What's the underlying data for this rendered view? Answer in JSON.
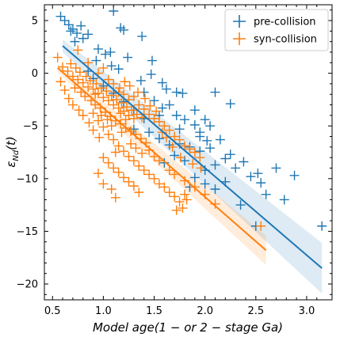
{
  "chart_data": {
    "type": "scatter",
    "xlabel": "Model age(1 −  or 2 − stage Ga)",
    "ylabel": "ε_Nd(t)",
    "ylabel_main": "ε",
    "ylabel_sub": "Nd",
    "ylabel_suffix": "(t)",
    "xlim": [
      0.42,
      3.25
    ],
    "ylim": [
      -21.5,
      6.5
    ],
    "xticks": [
      0.5,
      1.0,
      1.5,
      2.0,
      2.5,
      3.0
    ],
    "xtick_labels": [
      "0.5",
      "1.0",
      "1.5",
      "2.0",
      "2.5",
      "3.0"
    ],
    "yticks": [
      5,
      0,
      -5,
      -10,
      -15,
      -20
    ],
    "ytick_labels": [
      "5",
      "0",
      "−5",
      "−10",
      "−15",
      "−20"
    ],
    "grid": false,
    "legend_placement": "top-right",
    "series": [
      {
        "name": "pre-collision",
        "color": "#1f77b4",
        "marker": "plus",
        "points": [
          [
            0.58,
            5.4
          ],
          [
            0.62,
            5.0
          ],
          [
            0.66,
            4.6
          ],
          [
            0.7,
            4.2
          ],
          [
            0.74,
            3.8
          ],
          [
            0.72,
            3.0
          ],
          [
            0.8,
            3.3
          ],
          [
            0.78,
            4.5
          ],
          [
            0.68,
            4.0
          ],
          [
            0.85,
            3.7
          ],
          [
            1.1,
            5.9
          ],
          [
            1.17,
            4.3
          ],
          [
            1.2,
            4.1
          ],
          [
            1.38,
            3.5
          ],
          [
            1.07,
            2.0
          ],
          [
            1.02,
            1.8
          ],
          [
            0.95,
            2.3
          ],
          [
            0.93,
            1.2
          ],
          [
            1.08,
            0.7
          ],
          [
            1.15,
            0.4
          ],
          [
            1.24,
            1.5
          ],
          [
            1.48,
            1.2
          ],
          [
            1.47,
            -0.1
          ],
          [
            1.37,
            -0.7
          ],
          [
            1.58,
            -0.9
          ],
          [
            1.62,
            -1.5
          ],
          [
            1.72,
            -1.8
          ],
          [
            1.4,
            -1.8
          ],
          [
            1.5,
            -2.6
          ],
          [
            1.65,
            -3.0
          ],
          [
            1.78,
            -1.9
          ],
          [
            1.8,
            -4.4
          ],
          [
            1.9,
            -3.5
          ],
          [
            1.9,
            -4.9
          ],
          [
            2.0,
            -4.4
          ],
          [
            1.95,
            -5.6
          ],
          [
            2.05,
            -5.0
          ],
          [
            2.15,
            -6.3
          ],
          [
            2.25,
            -2.9
          ],
          [
            2.1,
            -1.8
          ],
          [
            2.02,
            -6.4
          ],
          [
            1.95,
            -7.4
          ],
          [
            1.85,
            -7.0
          ],
          [
            1.75,
            -6.7
          ],
          [
            1.65,
            -6.8
          ],
          [
            1.55,
            -6.2
          ],
          [
            1.45,
            -5.6
          ],
          [
            1.4,
            -4.3
          ],
          [
            1.3,
            -3.5
          ],
          [
            1.2,
            -2.7
          ],
          [
            1.1,
            -1.9
          ],
          [
            1.0,
            -1.2
          ],
          [
            0.9,
            -0.5
          ],
          [
            0.85,
            0.2
          ],
          [
            1.6,
            -8.5
          ],
          [
            1.7,
            -7.8
          ],
          [
            1.8,
            -8.3
          ],
          [
            2.1,
            -8.7
          ],
          [
            2.2,
            -8.1
          ],
          [
            2.25,
            -7.7
          ],
          [
            2.38,
            -8.4
          ],
          [
            2.3,
            -9.0
          ],
          [
            2.0,
            -9.2
          ],
          [
            1.9,
            -9.9
          ],
          [
            1.85,
            -10.8
          ],
          [
            2.0,
            -10.5
          ],
          [
            2.1,
            -11.0
          ],
          [
            2.2,
            -10.3
          ],
          [
            2.45,
            -9.8
          ],
          [
            2.52,
            -9.5
          ],
          [
            2.55,
            -10.4
          ],
          [
            2.6,
            -11.5
          ],
          [
            2.78,
            -12.0
          ],
          [
            2.88,
            -9.7
          ],
          [
            2.35,
            -12.5
          ],
          [
            2.5,
            -14.5
          ],
          [
            3.15,
            -14.5
          ],
          [
            2.7,
            -9.0
          ],
          [
            1.95,
            -6.0
          ],
          [
            1.72,
            -4.0
          ],
          [
            1.58,
            -3.3
          ],
          [
            1.3,
            -5.3
          ],
          [
            1.55,
            -4.0
          ],
          [
            1.75,
            -5.3
          ],
          [
            2.05,
            -7.1
          ]
        ]
      },
      {
        "name": "syn-collision",
        "color": "#ff7f0e",
        "marker": "plus",
        "points": [
          [
            0.6,
            0.6
          ],
          [
            0.65,
            0.2
          ],
          [
            0.7,
            -0.3
          ],
          [
            0.75,
            -0.6
          ],
          [
            0.8,
            -0.9
          ],
          [
            0.85,
            -1.3
          ],
          [
            0.9,
            -1.5
          ],
          [
            0.95,
            -1.9
          ],
          [
            1.0,
            -2.3
          ],
          [
            1.05,
            -2.6
          ],
          [
            1.1,
            -3.0
          ],
          [
            1.15,
            -3.3
          ],
          [
            1.2,
            -3.6
          ],
          [
            1.25,
            -4.0
          ],
          [
            1.3,
            -4.3
          ],
          [
            0.72,
            -1.4
          ],
          [
            0.78,
            -1.8
          ],
          [
            0.82,
            -2.2
          ],
          [
            0.88,
            -2.6
          ],
          [
            0.92,
            -3.0
          ],
          [
            0.97,
            -3.3
          ],
          [
            1.02,
            -3.7
          ],
          [
            1.07,
            -4.1
          ],
          [
            1.12,
            -4.5
          ],
          [
            1.17,
            -4.8
          ],
          [
            1.22,
            -5.2
          ],
          [
            1.27,
            -5.5
          ],
          [
            1.32,
            -5.8
          ],
          [
            1.37,
            -6.2
          ],
          [
            1.42,
            -6.6
          ],
          [
            0.68,
            0.9
          ],
          [
            0.73,
            0.5
          ],
          [
            0.77,
            0.1
          ],
          [
            0.83,
            -0.3
          ],
          [
            0.87,
            -0.7
          ],
          [
            0.93,
            -1.0
          ],
          [
            0.98,
            -1.4
          ],
          [
            1.03,
            -1.7
          ],
          [
            1.08,
            -2.1
          ],
          [
            1.13,
            -2.5
          ],
          [
            1.18,
            -2.8
          ],
          [
            1.23,
            -3.2
          ],
          [
            1.28,
            -3.5
          ],
          [
            1.33,
            -3.9
          ],
          [
            1.38,
            -4.2
          ],
          [
            0.75,
            2.2
          ],
          [
            0.85,
            1.0
          ],
          [
            0.95,
            0.0
          ],
          [
            1.0,
            0.5
          ],
          [
            1.05,
            -0.6
          ],
          [
            1.1,
            -1.0
          ],
          [
            1.15,
            -1.8
          ],
          [
            1.2,
            -2.0
          ],
          [
            1.25,
            -2.5
          ],
          [
            1.3,
            -2.2
          ],
          [
            1.35,
            -3.0
          ],
          [
            1.4,
            -3.4
          ],
          [
            1.45,
            -3.9
          ],
          [
            1.5,
            -4.3
          ],
          [
            1.55,
            -4.6
          ],
          [
            1.6,
            -5.0
          ],
          [
            1.65,
            -5.4
          ],
          [
            1.7,
            -6.0
          ],
          [
            1.75,
            -6.3
          ],
          [
            1.8,
            -6.9
          ],
          [
            1.85,
            -7.2
          ],
          [
            1.9,
            -7.5
          ],
          [
            1.95,
            -8.0
          ],
          [
            0.9,
            -3.8
          ],
          [
            0.95,
            -4.5
          ],
          [
            1.0,
            -5.1
          ],
          [
            1.05,
            -5.8
          ],
          [
            1.1,
            -6.3
          ],
          [
            1.15,
            -6.9
          ],
          [
            1.2,
            -7.4
          ],
          [
            1.25,
            -7.9
          ],
          [
            1.3,
            -8.3
          ],
          [
            1.35,
            -8.8
          ],
          [
            1.4,
            -9.2
          ],
          [
            1.45,
            -9.6
          ],
          [
            1.0,
            -8.0
          ],
          [
            1.05,
            -8.5
          ],
          [
            1.1,
            -9.0
          ],
          [
            1.15,
            -9.4
          ],
          [
            1.2,
            -9.9
          ],
          [
            1.25,
            -10.3
          ],
          [
            1.3,
            -10.7
          ],
          [
            0.95,
            -9.5
          ],
          [
            1.0,
            -10.5
          ],
          [
            1.08,
            -11.0
          ],
          [
            1.12,
            -11.8
          ],
          [
            1.35,
            -11.3
          ],
          [
            1.5,
            -10.0
          ],
          [
            1.55,
            -10.5
          ],
          [
            1.6,
            -10.8
          ],
          [
            1.65,
            -11.3
          ],
          [
            1.7,
            -11.7
          ],
          [
            1.75,
            -12.2
          ],
          [
            1.78,
            -12.8
          ],
          [
            1.8,
            -11.5
          ],
          [
            1.82,
            -12.0
          ],
          [
            1.72,
            -13.0
          ],
          [
            1.9,
            -10.8
          ],
          [
            2.0,
            -11.5
          ],
          [
            2.1,
            -12.4
          ],
          [
            1.65,
            -9.2
          ],
          [
            1.7,
            -9.6
          ],
          [
            1.8,
            -10.2
          ],
          [
            1.5,
            -7.9
          ],
          [
            1.55,
            -8.3
          ],
          [
            1.45,
            -7.3
          ],
          [
            0.55,
            1.5
          ],
          [
            0.58,
            -0.8
          ],
          [
            0.62,
            -1.6
          ],
          [
            0.66,
            -2.4
          ],
          [
            0.7,
            -3.0
          ],
          [
            0.76,
            -3.5
          ],
          [
            0.8,
            -4.0
          ],
          [
            0.86,
            -4.7
          ],
          [
            0.9,
            -5.4
          ],
          [
            0.96,
            -6.1
          ],
          [
            1.12,
            -7.5
          ],
          [
            1.17,
            -3.8
          ],
          [
            1.22,
            -4.4
          ],
          [
            1.27,
            -6.7
          ],
          [
            1.32,
            -7.1
          ],
          [
            1.38,
            -7.6
          ],
          [
            1.18,
            -5.6
          ],
          [
            1.08,
            -5.0
          ],
          [
            1.04,
            -4.4
          ],
          [
            0.98,
            -4.0
          ],
          [
            0.92,
            -2.0
          ],
          [
            1.16,
            -1.4
          ],
          [
            1.21,
            -0.8
          ],
          [
            1.26,
            -1.2
          ],
          [
            1.34,
            -1.8
          ],
          [
            1.41,
            -2.4
          ],
          [
            1.46,
            -3.1
          ],
          [
            1.52,
            -3.6
          ],
          [
            1.58,
            -5.6
          ],
          [
            1.62,
            -6.1
          ],
          [
            1.68,
            -7.0
          ],
          [
            2.55,
            -14.5
          ],
          [
            1.96,
            -9.0
          ],
          [
            1.88,
            -8.6
          ],
          [
            1.76,
            -8.0
          ]
        ]
      }
    ],
    "fits": [
      {
        "series": "pre-collision",
        "x": [
          0.6,
          3.15
        ],
        "y": [
          2.6,
          -18.5
        ],
        "band_half_width_start": 0.6,
        "band_half_width_end": 2.4
      },
      {
        "series": "syn-collision",
        "x": [
          0.55,
          2.6
        ],
        "y": [
          0.5,
          -16.8
        ],
        "band_half_width_start": 0.4,
        "band_half_width_end": 1.4
      }
    ]
  }
}
